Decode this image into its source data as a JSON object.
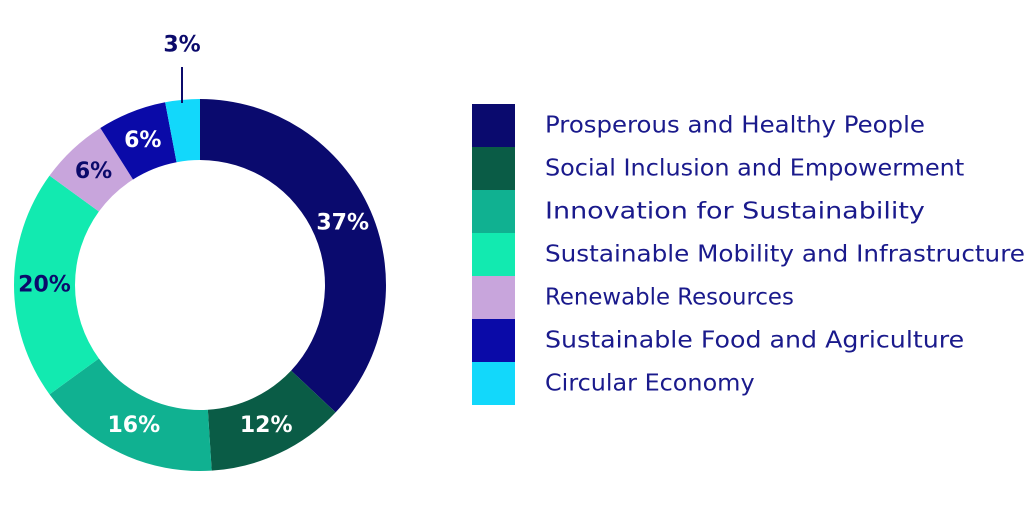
{
  "chart_data": {
    "type": "pie",
    "subtype": "donut",
    "title": "",
    "legend_position": "right",
    "categories": [
      "Prosperous and Healthy People",
      "Social Inclusion and Empowerment",
      "Innovation for Sustainability",
      "Sustainable Mobility and Infrastructure",
      "Renewable Resources",
      "Sustainable Food and Agriculture",
      "Circular Economy"
    ],
    "values": [
      37,
      12,
      16,
      20,
      6,
      6,
      3
    ],
    "labels": [
      "37%",
      "12%",
      "16%",
      "20%",
      "6%",
      "6%",
      "3%"
    ],
    "colors": [
      "#0a0a6e",
      "#0a5c46",
      "#10b191",
      "#12eab0",
      "#c8a5dc",
      "#0a0aa8",
      "#12d8fb"
    ]
  }
}
